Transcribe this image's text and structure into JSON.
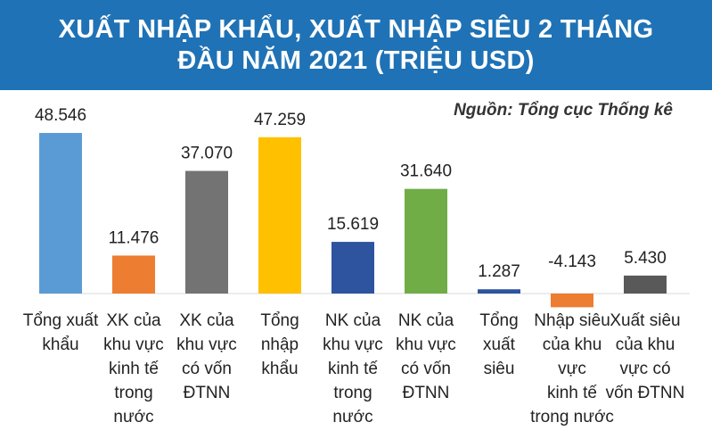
{
  "header": {
    "title_line1": "XUẤT NHẬP KHẨU, XUẤT NHẬP SIÊU 2 THÁNG",
    "title_line2": "ĐẦU NĂM 2021 (TRIỆU USD)"
  },
  "source": "Nguồn: Tổng cục Thống kê",
  "chart_data": {
    "type": "bar",
    "title": "XUẤT NHẬP KHẨU, XUẤT NHẬP SIÊU 2 THÁNG ĐẦU NĂM 2021 (TRIỆU USD)",
    "categories": [
      [
        "Tổng xuất",
        "khẩu"
      ],
      [
        "XK của",
        "khu vực",
        "kinh tế",
        "trong",
        "nước"
      ],
      [
        "XK của",
        "khu vực",
        "có vốn",
        "ĐTNN"
      ],
      [
        "Tổng",
        "nhập",
        "khẩu"
      ],
      [
        "NK của",
        "khu vực",
        "kinh tế",
        "trong",
        "nước"
      ],
      [
        "NK của",
        "khu vực",
        "có vốn",
        "ĐTNN"
      ],
      [
        "Tổng",
        "xuất",
        "siêu"
      ],
      [
        "Nhập siêu",
        "của khu",
        "vực",
        "kinh tế",
        "trong nước"
      ],
      [
        "Xuất siêu",
        "của khu",
        "vực có",
        "vốn ĐTNN"
      ]
    ],
    "values": [
      48546,
      11476,
      37070,
      47259,
      15619,
      31640,
      1287,
      -4143,
      5430
    ],
    "value_labels": [
      "48.546",
      "11.476",
      "37.070",
      "47.259",
      "15.619",
      "31.640",
      "1.287",
      "-4.143",
      "5.430"
    ],
    "colors": [
      "#5b9bd5",
      "#ed7d31",
      "#737373",
      "#ffc000",
      "#2e54a0",
      "#70ad47",
      "#2e54a0",
      "#ed7d31",
      "#595959"
    ],
    "xlabel": "",
    "ylabel": "",
    "ylim": [
      -4143,
      48546
    ],
    "grid": false,
    "legend": "none"
  }
}
